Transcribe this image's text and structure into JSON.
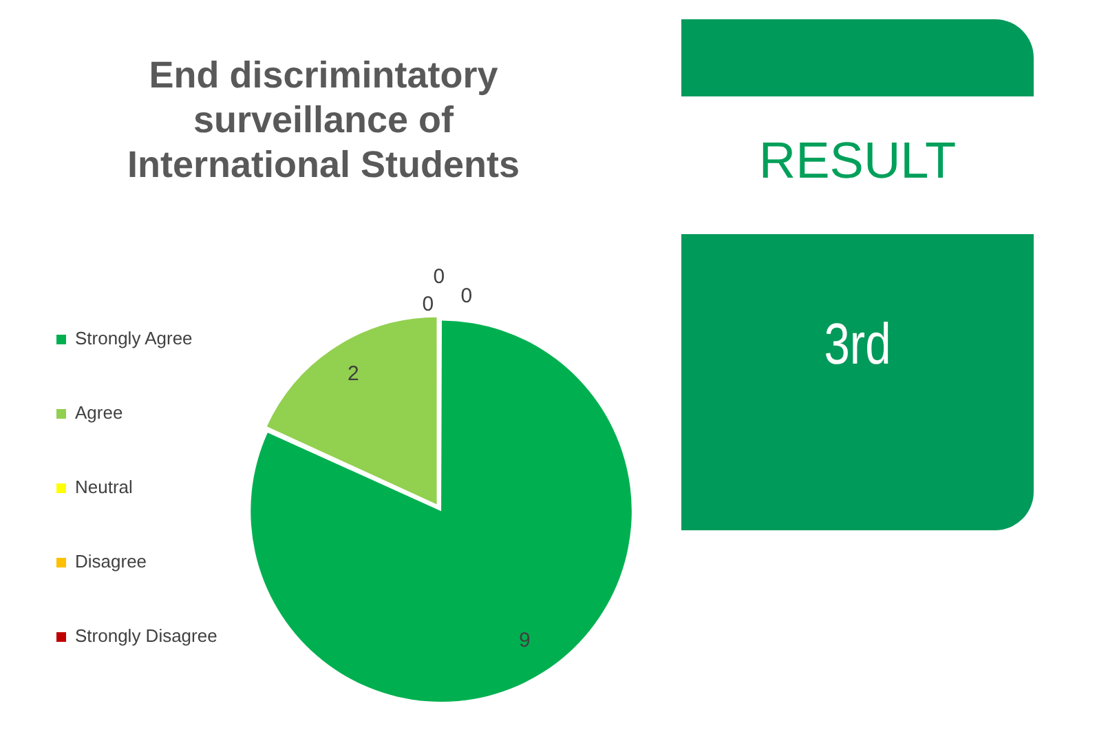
{
  "chart_data": [
    {
      "type": "pie",
      "title": "End discrimintatory surveillance of International Students",
      "categories": [
        "Strongly Agree",
        "Agree",
        "Neutral",
        "Disagree",
        "Strongly Disagree"
      ],
      "values": [
        9,
        2,
        0,
        0,
        0
      ],
      "colors": [
        "#00b050",
        "#92d050",
        "#ffff00",
        "#ffc000",
        "#c00000"
      ],
      "legend": "left",
      "value_labels": [
        "9",
        "2",
        "0",
        "0",
        "0"
      ]
    },
    {
      "type": "other",
      "title": "RESULT",
      "annotations": [
        "3rd"
      ]
    }
  ]
}
